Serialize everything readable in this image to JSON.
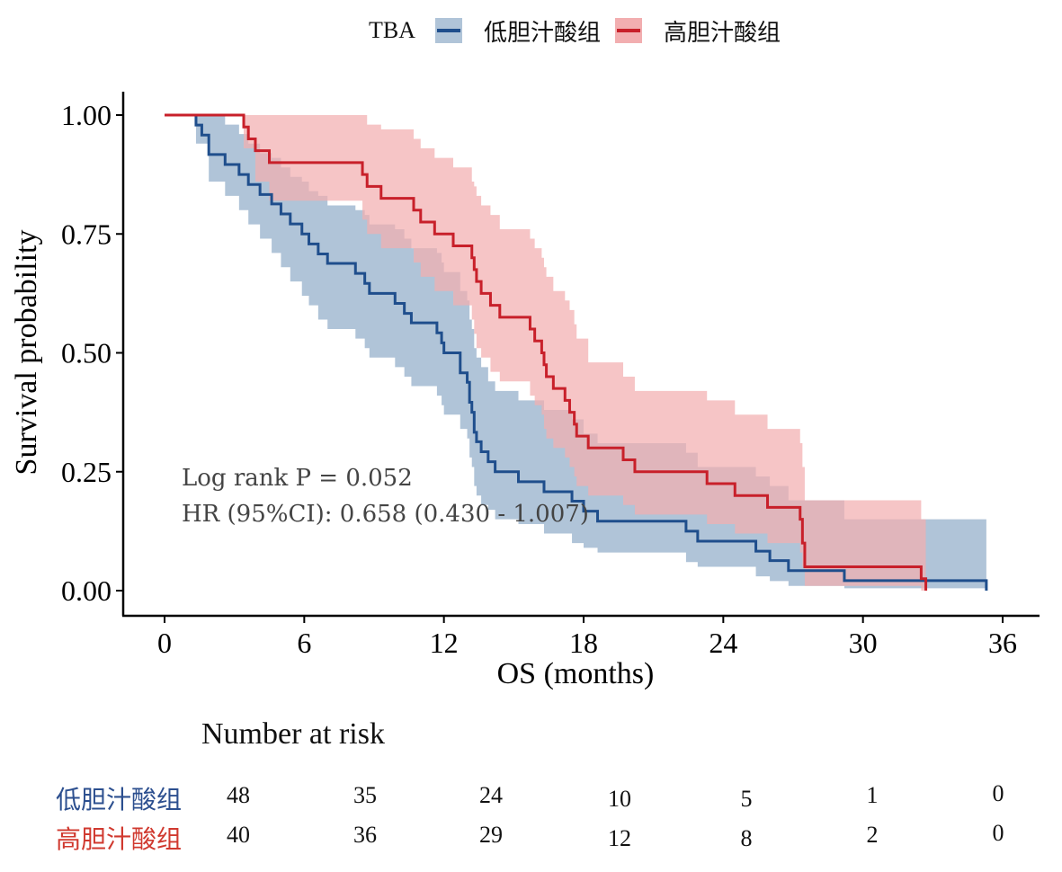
{
  "legend": {
    "title": "TBA",
    "items": [
      {
        "label": "低胆汁酸组",
        "line_color": "#1f4e8c",
        "fill_color": "#b0c4d8"
      },
      {
        "label": "高胆汁酸组",
        "line_color": "#c8202a",
        "fill_color": "#f2aeb0"
      }
    ]
  },
  "chart_data": {
    "type": "line",
    "subtype": "kaplan-meier",
    "xlabel": "OS (months)",
    "ylabel": "Survival probability",
    "xlim": [
      0,
      36
    ],
    "ylim": [
      0,
      1
    ],
    "xticks": [
      0,
      6,
      12,
      18,
      24,
      30,
      36
    ],
    "xtick_labels": [
      "0",
      "6",
      "12",
      "18",
      "24",
      "30",
      "36"
    ],
    "yticks": [
      0,
      0.25,
      0.5,
      0.75,
      1.0
    ],
    "ytick_labels": [
      "0.00",
      "0.25",
      "0.50",
      "0.75",
      "1.00"
    ],
    "grid": false,
    "legend_position": "top",
    "annotations": [
      "Log rank P = 0.052",
      "HR (95%CI): 0.658 (0.430 - 1.007)"
    ],
    "series": [
      {
        "name": "低胆汁酸组",
        "color": "#1f4e8c",
        "ci_color": "#b0c4d8",
        "steps": [
          [
            0,
            1.0
          ],
          [
            1.35,
            0.979
          ],
          [
            1.6,
            0.958
          ],
          [
            1.9,
            0.917
          ],
          [
            2.6,
            0.896
          ],
          [
            3.2,
            0.875
          ],
          [
            3.6,
            0.854
          ],
          [
            4.1,
            0.833
          ],
          [
            4.6,
            0.813
          ],
          [
            5.0,
            0.792
          ],
          [
            5.4,
            0.771
          ],
          [
            5.9,
            0.75
          ],
          [
            6.2,
            0.729
          ],
          [
            6.6,
            0.708
          ],
          [
            7.0,
            0.688
          ],
          [
            8.2,
            0.667
          ],
          [
            8.6,
            0.646
          ],
          [
            8.8,
            0.625
          ],
          [
            9.9,
            0.604
          ],
          [
            10.3,
            0.583
          ],
          [
            10.6,
            0.563
          ],
          [
            11.7,
            0.542
          ],
          [
            11.9,
            0.521
          ],
          [
            12.0,
            0.5
          ],
          [
            12.7,
            0.458
          ],
          [
            13.0,
            0.438
          ],
          [
            13.1,
            0.396
          ],
          [
            13.2,
            0.375
          ],
          [
            13.3,
            0.333
          ],
          [
            13.4,
            0.313
          ],
          [
            13.6,
            0.292
          ],
          [
            13.9,
            0.271
          ],
          [
            14.2,
            0.25
          ],
          [
            15.2,
            0.229
          ],
          [
            16.3,
            0.208
          ],
          [
            17.5,
            0.188
          ],
          [
            18.0,
            0.167
          ],
          [
            18.6,
            0.146
          ],
          [
            22.4,
            0.125
          ],
          [
            22.9,
            0.104
          ],
          [
            25.4,
            0.083
          ],
          [
            26.0,
            0.063
          ],
          [
            26.8,
            0.042
          ],
          [
            29.2,
            0.021
          ],
          [
            35.3,
            0.0
          ]
        ],
        "end_time": 35.3,
        "ci": [
          [
            0,
            1.0,
            1.0
          ],
          [
            1.35,
            0.94,
            1.0
          ],
          [
            1.9,
            0.86,
            1.0
          ],
          [
            2.6,
            0.83,
            0.98
          ],
          [
            3.2,
            0.8,
            0.96
          ],
          [
            3.6,
            0.77,
            0.94
          ],
          [
            4.1,
            0.74,
            0.92
          ],
          [
            4.6,
            0.71,
            0.91
          ],
          [
            5.0,
            0.68,
            0.89
          ],
          [
            5.4,
            0.65,
            0.87
          ],
          [
            5.9,
            0.62,
            0.86
          ],
          [
            6.2,
            0.6,
            0.84
          ],
          [
            6.6,
            0.57,
            0.83
          ],
          [
            7.0,
            0.55,
            0.81
          ],
          [
            8.2,
            0.53,
            0.8
          ],
          [
            8.6,
            0.51,
            0.79
          ],
          [
            8.8,
            0.49,
            0.77
          ],
          [
            9.9,
            0.47,
            0.76
          ],
          [
            10.3,
            0.45,
            0.74
          ],
          [
            10.6,
            0.43,
            0.72
          ],
          [
            11.7,
            0.41,
            0.71
          ],
          [
            11.9,
            0.39,
            0.69
          ],
          [
            12.0,
            0.37,
            0.67
          ],
          [
            12.7,
            0.34,
            0.63
          ],
          [
            13.0,
            0.32,
            0.61
          ],
          [
            13.1,
            0.28,
            0.57
          ],
          [
            13.2,
            0.26,
            0.55
          ],
          [
            13.3,
            0.22,
            0.51
          ],
          [
            13.4,
            0.2,
            0.49
          ],
          [
            13.6,
            0.18,
            0.47
          ],
          [
            13.9,
            0.17,
            0.44
          ],
          [
            14.2,
            0.15,
            0.42
          ],
          [
            15.2,
            0.14,
            0.4
          ],
          [
            16.3,
            0.12,
            0.38
          ],
          [
            17.5,
            0.1,
            0.36
          ],
          [
            18.0,
            0.09,
            0.33
          ],
          [
            18.6,
            0.08,
            0.31
          ],
          [
            22.4,
            0.06,
            0.29
          ],
          [
            22.9,
            0.05,
            0.26
          ],
          [
            25.4,
            0.03,
            0.24
          ],
          [
            26.0,
            0.02,
            0.22
          ],
          [
            26.8,
            0.01,
            0.19
          ],
          [
            29.2,
            0.005,
            0.15
          ],
          [
            35.3,
            0.005,
            0.15
          ]
        ]
      },
      {
        "name": "高胆汁酸组",
        "color": "#c8202a",
        "ci_color": "#f2aeb0",
        "steps": [
          [
            0,
            1.0
          ],
          [
            3.4,
            0.975
          ],
          [
            3.6,
            0.95
          ],
          [
            3.9,
            0.925
          ],
          [
            4.5,
            0.9
          ],
          [
            8.5,
            0.875
          ],
          [
            8.7,
            0.85
          ],
          [
            9.3,
            0.825
          ],
          [
            10.7,
            0.8
          ],
          [
            11.0,
            0.775
          ],
          [
            11.6,
            0.75
          ],
          [
            12.4,
            0.725
          ],
          [
            13.2,
            0.7
          ],
          [
            13.3,
            0.675
          ],
          [
            13.4,
            0.65
          ],
          [
            13.6,
            0.625
          ],
          [
            14.0,
            0.6
          ],
          [
            14.4,
            0.575
          ],
          [
            15.7,
            0.55
          ],
          [
            15.9,
            0.525
          ],
          [
            16.2,
            0.5
          ],
          [
            16.3,
            0.475
          ],
          [
            16.4,
            0.45
          ],
          [
            16.7,
            0.425
          ],
          [
            17.2,
            0.4
          ],
          [
            17.4,
            0.375
          ],
          [
            17.6,
            0.35
          ],
          [
            17.7,
            0.325
          ],
          [
            18.2,
            0.3
          ],
          [
            19.7,
            0.275
          ],
          [
            20.2,
            0.25
          ],
          [
            23.3,
            0.225
          ],
          [
            24.5,
            0.2
          ],
          [
            25.9,
            0.175
          ],
          [
            27.3,
            0.15
          ],
          [
            27.4,
            0.1
          ],
          [
            27.5,
            0.05
          ],
          [
            32.5,
            0.025
          ],
          [
            32.7,
            0.0
          ]
        ],
        "end_time": 32.7,
        "ci": [
          [
            0,
            1.0,
            1.0
          ],
          [
            3.4,
            0.93,
            1.0
          ],
          [
            3.9,
            0.86,
            1.0
          ],
          [
            4.5,
            0.82,
            1.0
          ],
          [
            8.5,
            0.78,
            1.0
          ],
          [
            8.7,
            0.75,
            0.98
          ],
          [
            9.3,
            0.72,
            0.97
          ],
          [
            10.7,
            0.69,
            0.95
          ],
          [
            11.0,
            0.66,
            0.93
          ],
          [
            11.6,
            0.63,
            0.91
          ],
          [
            12.4,
            0.6,
            0.89
          ],
          [
            13.2,
            0.57,
            0.86
          ],
          [
            13.3,
            0.54,
            0.85
          ],
          [
            13.4,
            0.51,
            0.83
          ],
          [
            13.6,
            0.49,
            0.81
          ],
          [
            14.0,
            0.46,
            0.79
          ],
          [
            14.4,
            0.44,
            0.76
          ],
          [
            15.7,
            0.41,
            0.74
          ],
          [
            15.9,
            0.39,
            0.72
          ],
          [
            16.2,
            0.37,
            0.7
          ],
          [
            16.3,
            0.34,
            0.68
          ],
          [
            16.4,
            0.32,
            0.66
          ],
          [
            16.7,
            0.3,
            0.63
          ],
          [
            17.2,
            0.28,
            0.61
          ],
          [
            17.4,
            0.26,
            0.59
          ],
          [
            17.6,
            0.24,
            0.56
          ],
          [
            17.7,
            0.22,
            0.53
          ],
          [
            18.2,
            0.2,
            0.48
          ],
          [
            19.7,
            0.18,
            0.45
          ],
          [
            20.2,
            0.16,
            0.42
          ],
          [
            23.3,
            0.14,
            0.4
          ],
          [
            24.5,
            0.12,
            0.37
          ],
          [
            25.9,
            0.1,
            0.34
          ],
          [
            27.3,
            0.08,
            0.31
          ],
          [
            27.4,
            0.05,
            0.26
          ],
          [
            27.5,
            0.01,
            0.19
          ],
          [
            32.5,
            0.0,
            0.15
          ],
          [
            32.7,
            0.0,
            0.15
          ]
        ]
      }
    ]
  },
  "risk_table": {
    "title": "Number at risk",
    "times": [
      0,
      6,
      12,
      18,
      24,
      30,
      36
    ],
    "rows": [
      {
        "name": "低胆汁酸组",
        "color": "#2c4f8f",
        "values": [
          "48",
          "35",
          "24",
          "10",
          "5",
          "1",
          "0"
        ]
      },
      {
        "name": "高胆汁酸组",
        "color": "#d0392f",
        "values": [
          "40",
          "36",
          "29",
          "12",
          "8",
          "2",
          "0"
        ]
      }
    ]
  }
}
